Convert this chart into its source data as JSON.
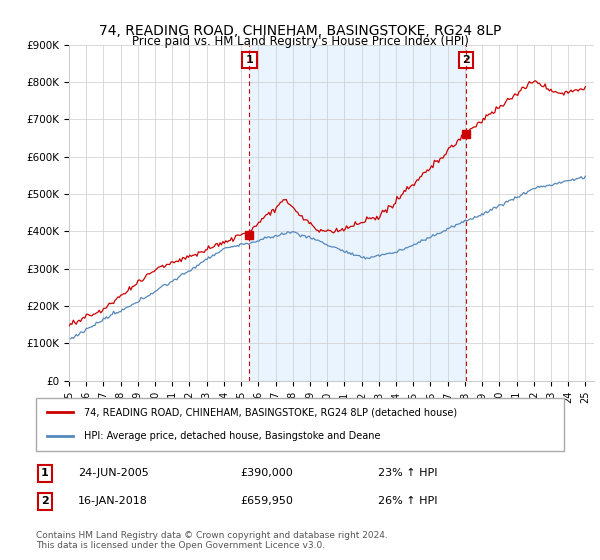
{
  "title": "74, READING ROAD, CHINEHAM, BASINGSTOKE, RG24 8LP",
  "subtitle": "Price paid vs. HM Land Registry's House Price Index (HPI)",
  "ylim": [
    0,
    900000
  ],
  "yticks": [
    0,
    100000,
    200000,
    300000,
    400000,
    500000,
    600000,
    700000,
    800000,
    900000
  ],
  "ytick_labels": [
    "£0",
    "£100K",
    "£200K",
    "£300K",
    "£400K",
    "£500K",
    "£600K",
    "£700K",
    "£800K",
    "£900K"
  ],
  "sale1_date": 2005.48,
  "sale1_price": 390000,
  "sale1_label": "1",
  "sale2_date": 2018.05,
  "sale2_price": 659950,
  "sale2_label": "2",
  "red_line_color": "#cc0000",
  "blue_line_color": "#5588bb",
  "shade_color": "#ddeeff",
  "annotation_box_color": "#cc0000",
  "background_color": "#ffffff",
  "legend_text1": "74, READING ROAD, CHINEHAM, BASINGSTOKE, RG24 8LP (detached house)",
  "legend_text2": "HPI: Average price, detached house, Basingstoke and Deane",
  "table_row1": [
    "1",
    "24-JUN-2005",
    "£390,000",
    "23% ↑ HPI"
  ],
  "table_row2": [
    "2",
    "16-JAN-2018",
    "£659,950",
    "26% ↑ HPI"
  ],
  "footer": "Contains HM Land Registry data © Crown copyright and database right 2024.\nThis data is licensed under the Open Government Licence v3.0.",
  "title_fontsize": 10,
  "grid_color": "#cccccc",
  "xlim_start": 1995,
  "xlim_end": 2025.5
}
